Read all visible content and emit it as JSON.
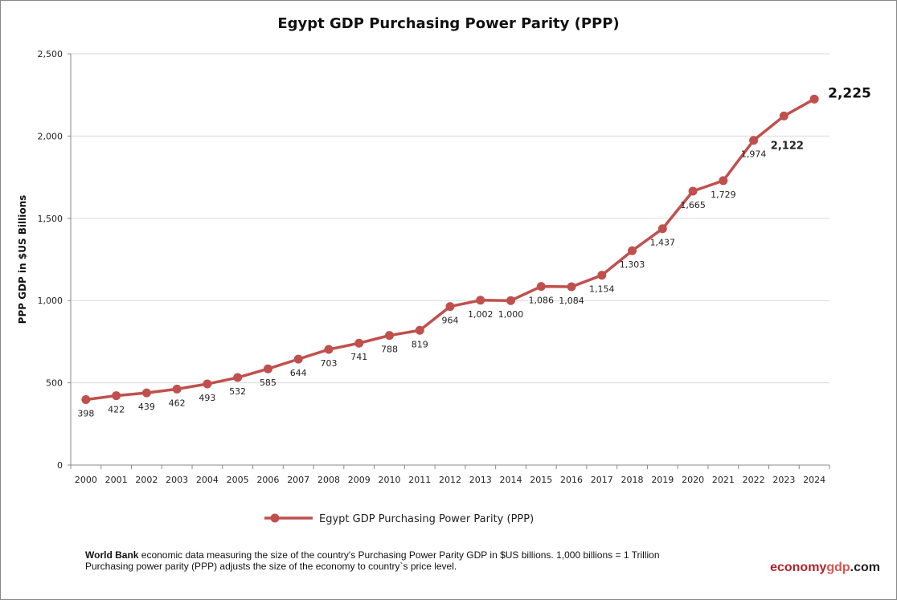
{
  "chart_data": {
    "type": "line",
    "title": "Egypt GDP Purchasing Power Parity (PPP)",
    "ylabel": "PPP GDP in $US Billions",
    "xlabel": "",
    "ylim": [
      0,
      2500
    ],
    "yticks": [
      0,
      500,
      1000,
      1500,
      2000,
      2500
    ],
    "ytick_labels": [
      "0",
      "500",
      "1,000",
      "1,500",
      "2,000",
      "2,500"
    ],
    "grid": "horizontal",
    "legend_position": "bottom",
    "categories": [
      "2000",
      "2001",
      "2002",
      "2003",
      "2004",
      "2005",
      "2006",
      "2007",
      "2008",
      "2009",
      "2010",
      "2011",
      "2012",
      "2013",
      "2014",
      "2015",
      "2016",
      "2017",
      "2018",
      "2019",
      "2020",
      "2021",
      "2022",
      "2023",
      "2024"
    ],
    "series": [
      {
        "name": "Egypt GDP Purchasing Power Parity (PPP)",
        "color": "#c0504d",
        "values": [
          398,
          422,
          439,
          462,
          493,
          532,
          585,
          644,
          703,
          741,
          788,
          819,
          964,
          1002,
          1000,
          1086,
          1084,
          1154,
          1303,
          1437,
          1665,
          1729,
          1974,
          2122,
          2225
        ],
        "labels": [
          "398",
          "422",
          "439",
          "462",
          "493",
          "532",
          "585",
          "644",
          "703",
          "741",
          "788",
          "819",
          "964",
          "1,002",
          "1,000",
          "1,086",
          "1,084",
          "1,154",
          "1,303",
          "1,437",
          "1,665",
          "1,729",
          "1,974",
          "2,122",
          "2,225"
        ]
      }
    ]
  },
  "footer": {
    "source_bold": "World Bank",
    "line1": " economic data  measuring the size of the country's Purchasing Power Parity GDP in $US billions. 1,000 billions = 1 Trillion",
    "line2": "Purchasing power parity (PPP) adjusts the size of the economy to country`s price level."
  },
  "brand": {
    "part1": "economy",
    "part2": "gdp",
    "part3": ".com"
  }
}
